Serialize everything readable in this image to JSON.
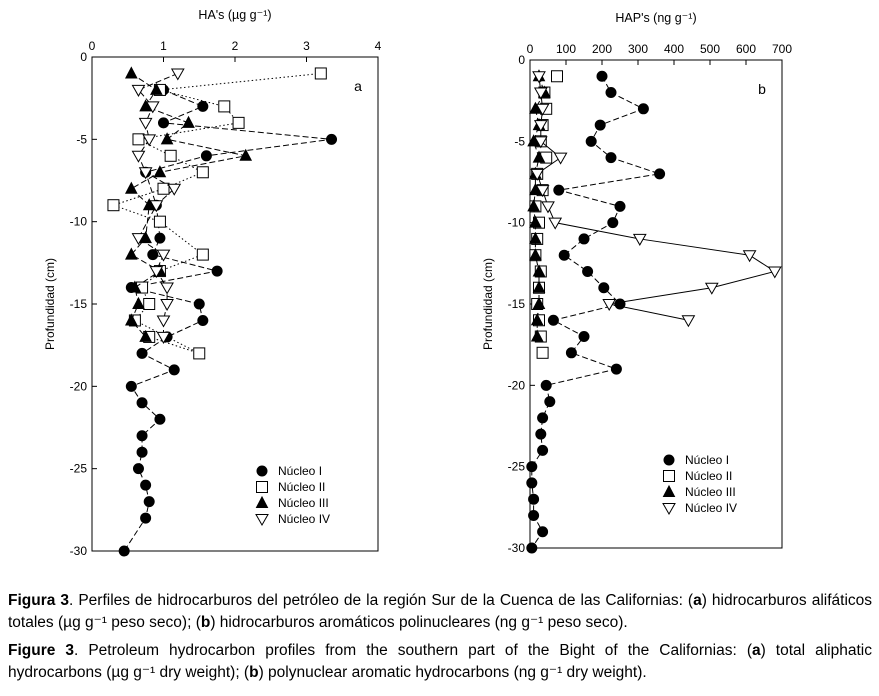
{
  "chart_data": [
    {
      "type": "scatter",
      "panel_label": "a",
      "title": "",
      "xlabel": "HA's (µg g⁻¹)",
      "ylabel": "Profundidad (cm)",
      "xlim": [
        0,
        4
      ],
      "ylim": [
        -30,
        0
      ],
      "xticks": [
        "0",
        "1",
        "2",
        "3",
        "4"
      ],
      "yticks": [
        "0",
        "-5",
        "-10",
        "-15",
        "-20",
        "-25",
        "-30"
      ],
      "legend_position": "bottom-right",
      "series": [
        {
          "name": "Núcleo I",
          "marker": "circle-filled",
          "line": "dash",
          "x": [
            1.0,
            1.55,
            1.0,
            3.35,
            1.6,
            0.75,
            0.9,
            0.95,
            0.85,
            1.75,
            0.55,
            1.5,
            1.55,
            1.05,
            0.7,
            1.15,
            0.55,
            0.7,
            0.95,
            0.7,
            0.7,
            0.65,
            0.75,
            0.8,
            0.75,
            0.45
          ],
          "y": [
            -2,
            -3,
            -4,
            -5,
            -6,
            -7,
            -9,
            -11,
            -12,
            -13,
            -14,
            -15,
            -16,
            -17,
            -18,
            -19,
            -20,
            -21,
            -22,
            -23,
            -24,
            -25,
            -26,
            -27,
            -28,
            -30
          ]
        },
        {
          "name": "Núcleo II",
          "marker": "square-open",
          "line": "dot",
          "x": [
            3.2,
            0.95,
            1.85,
            2.05,
            0.65,
            1.1,
            1.55,
            1.0,
            0.3,
            0.95,
            1.55,
            0.95,
            0.7,
            0.8,
            0.6,
            1.5,
            0.8
          ],
          "y": [
            -1,
            -2,
            -3,
            -4,
            -5,
            -6,
            -7,
            -8,
            -9,
            -10,
            -12,
            -13,
            -14,
            -15,
            -16,
            -18,
            -17
          ]
        },
        {
          "name": "Núcleo III",
          "marker": "triangle-filled",
          "line": "dash",
          "x": [
            0.55,
            0.9,
            0.75,
            1.35,
            1.05,
            2.15,
            0.95,
            0.55,
            0.8,
            0.75,
            0.55,
            0.95,
            0.6,
            0.65,
            0.55,
            0.75
          ],
          "y": [
            -1,
            -2,
            -3,
            -4,
            -5,
            -6,
            -7,
            -8,
            -9,
            -11,
            -12,
            -13,
            -14,
            -15,
            -16,
            -17
          ]
        },
        {
          "name": "Núcleo IV",
          "marker": "triangle-open",
          "line": "dash",
          "x": [
            1.2,
            0.65,
            0.85,
            0.75,
            0.8,
            0.65,
            0.75,
            1.15,
            0.9,
            0.65,
            1.0,
            0.9,
            1.05,
            1.05,
            1.0,
            1.0
          ],
          "y": [
            -1,
            -2,
            -3,
            -4,
            -5,
            -6,
            -7,
            -8,
            -9,
            -11,
            -12,
            -13,
            -14,
            -15,
            -16,
            -17
          ]
        }
      ]
    },
    {
      "type": "scatter",
      "panel_label": "b",
      "title": "",
      "xlabel": "HAP's (ng g⁻¹)",
      "ylabel": "Profundidad (cm)",
      "xlim": [
        0,
        700
      ],
      "ylim": [
        -30,
        0
      ],
      "xticks": [
        "0",
        "100",
        "200",
        "300",
        "400",
        "500",
        "600",
        "700"
      ],
      "yticks": [
        "0",
        "-5",
        "-10",
        "-15",
        "-20",
        "-25",
        "-30"
      ],
      "legend_position": "bottom-right",
      "series": [
        {
          "name": "Núcleo I",
          "marker": "circle-filled",
          "line": "dash",
          "x": [
            200,
            225,
            315,
            195,
            170,
            225,
            360,
            80,
            250,
            230,
            150,
            95,
            160,
            205,
            250,
            65,
            150,
            115,
            240,
            45,
            55,
            35,
            30,
            35,
            5,
            5,
            10,
            10,
            35,
            5
          ],
          "y": [
            -1,
            -2,
            -3,
            -4,
            -5,
            -6,
            -7,
            -8,
            -9,
            -10,
            -11,
            -12,
            -13,
            -14,
            -15,
            -16,
            -17,
            -18,
            -19,
            -20,
            -21,
            -22,
            -23,
            -24,
            -25,
            -26,
            -27,
            -28,
            -29,
            -30
          ]
        },
        {
          "name": "Núcleo II",
          "marker": "square-open",
          "line": "none",
          "x": [
            75,
            40,
            45,
            35,
            30,
            45,
            20,
            35,
            15,
            25,
            20,
            15,
            30,
            25,
            20,
            25,
            30,
            35
          ],
          "y": [
            -1,
            -2,
            -3,
            -4,
            -5,
            -6,
            -7,
            -8,
            -9,
            -10,
            -11,
            -12,
            -13,
            -14,
            -15,
            -16,
            -17,
            -18
          ]
        },
        {
          "name": "Núcleo III",
          "marker": "triangle-filled",
          "line": "dash",
          "x": [
            25,
            40,
            15,
            25,
            10,
            25,
            15,
            15,
            10,
            15,
            15,
            15,
            25,
            25,
            25,
            20,
            20
          ],
          "y": [
            -1,
            -2,
            -3,
            -4,
            -5,
            -6,
            -7,
            -8,
            -9,
            -10,
            -11,
            -12,
            -13,
            -14,
            -15,
            -16,
            -17
          ]
        },
        {
          "name": "Núcleo IV",
          "marker": "triangle-open",
          "line": "solid",
          "x": [
            25,
            30,
            35,
            30,
            30,
            85,
            20,
            35,
            50,
            70,
            305,
            610,
            680,
            505,
            220,
            440
          ],
          "y": [
            -1,
            -2,
            -3,
            -4,
            -5,
            -6,
            -7,
            -8,
            -9,
            -10,
            -11,
            -12,
            -13,
            -14,
            -15,
            -16
          ]
        }
      ]
    }
  ],
  "caption": {
    "es_label": "Figura 3",
    "es_text_1": ". Perfiles de hidrocarburos del petróleo de la región Sur de la Cuenca de las Californias: (",
    "es_a": "a",
    "es_text_2": ") hidrocarburos alifáticos totales (µg g⁻¹ peso seco); (",
    "es_b": "b",
    "es_text_3": ") hidrocarburos aromáticos polinucleares (ng g⁻¹ peso seco).",
    "en_label": "Figure 3",
    "en_text_1": ". Petroleum hydrocarbon profiles from the southern part of the Bight of the Californias: (",
    "en_a": "a",
    "en_text_2": ") total aliphatic hydrocarbons (µg g⁻¹ dry weight); (",
    "en_b": "b",
    "en_text_3": ") polynuclear aromatic hydrocarbons (ng g⁻¹ dry weight)."
  }
}
